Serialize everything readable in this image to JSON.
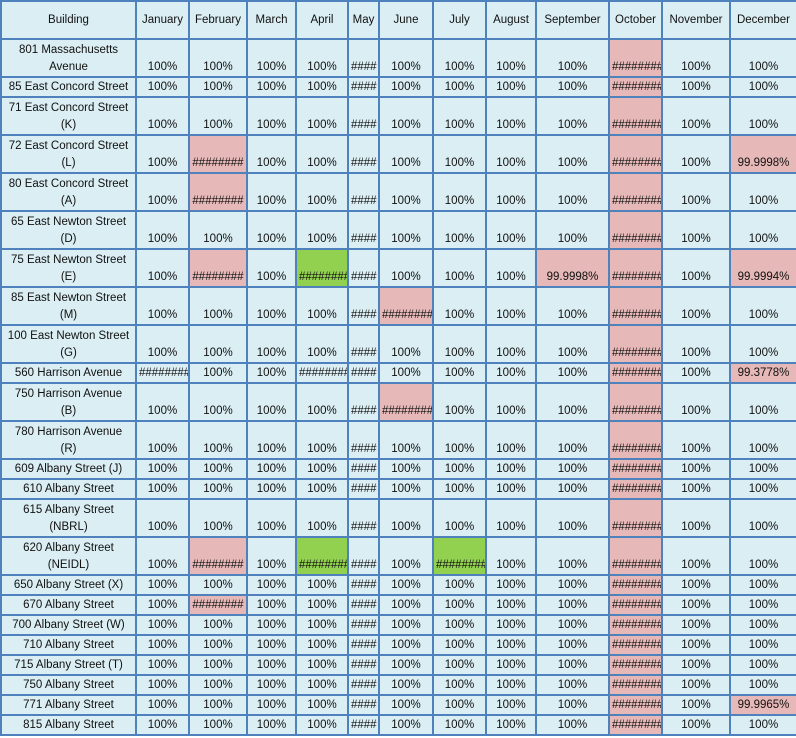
{
  "table": {
    "header": [
      "Building",
      "January",
      "February",
      "March",
      "April",
      "May",
      "June",
      "July",
      "August",
      "September",
      "October",
      "November",
      "December"
    ],
    "colors": {
      "pink": "#e6b8b7",
      "green": "#92d050"
    },
    "rows": [
      {
        "building": [
          "801 Massachusetts",
          "Avenue"
        ],
        "values": [
          "100%",
          "100%",
          "100%",
          "100%",
          "####",
          "100%",
          "100%",
          "100%",
          "100%",
          "########",
          "100%",
          "100%"
        ],
        "fills": [
          null,
          null,
          null,
          null,
          null,
          null,
          null,
          null,
          null,
          "pink",
          null,
          null
        ]
      },
      {
        "building": [
          "85 East Concord Street"
        ],
        "values": [
          "100%",
          "100%",
          "100%",
          "100%",
          "####",
          "100%",
          "100%",
          "100%",
          "100%",
          "########",
          "100%",
          "100%"
        ],
        "fills": [
          null,
          null,
          null,
          null,
          null,
          null,
          null,
          null,
          null,
          "pink",
          null,
          null
        ]
      },
      {
        "building": [
          "71 East Concord Street",
          "(K)"
        ],
        "values": [
          "100%",
          "100%",
          "100%",
          "100%",
          "####",
          "100%",
          "100%",
          "100%",
          "100%",
          "########",
          "100%",
          "100%"
        ],
        "fills": [
          null,
          null,
          null,
          null,
          null,
          null,
          null,
          null,
          null,
          "pink",
          null,
          null
        ]
      },
      {
        "building": [
          "72 East Concord Street",
          "(L)"
        ],
        "values": [
          "100%",
          "########",
          "100%",
          "100%",
          "####",
          "100%",
          "100%",
          "100%",
          "100%",
          "########",
          "100%",
          "99.9998%"
        ],
        "fills": [
          null,
          "pink",
          null,
          null,
          null,
          null,
          null,
          null,
          null,
          "pink",
          null,
          "pink"
        ]
      },
      {
        "building": [
          "80 East Concord Street",
          "(A)"
        ],
        "values": [
          "100%",
          "########",
          "100%",
          "100%",
          "####",
          "100%",
          "100%",
          "100%",
          "100%",
          "########",
          "100%",
          "100%"
        ],
        "fills": [
          null,
          "pink",
          null,
          null,
          null,
          null,
          null,
          null,
          null,
          "pink",
          null,
          null
        ]
      },
      {
        "building": [
          "65 East Newton Street",
          "(D)"
        ],
        "values": [
          "100%",
          "100%",
          "100%",
          "100%",
          "####",
          "100%",
          "100%",
          "100%",
          "100%",
          "########",
          "100%",
          "100%"
        ],
        "fills": [
          null,
          null,
          null,
          null,
          null,
          null,
          null,
          null,
          null,
          "pink",
          null,
          null
        ]
      },
      {
        "building": [
          "75 East Newton Street",
          "(E)"
        ],
        "values": [
          "100%",
          "########",
          "100%",
          "########",
          "####",
          "100%",
          "100%",
          "100%",
          "99.9998%",
          "########",
          "100%",
          "99.9994%"
        ],
        "fills": [
          null,
          "pink",
          null,
          "green",
          null,
          null,
          null,
          null,
          "pink",
          "pink",
          null,
          "pink"
        ]
      },
      {
        "building": [
          "85 East Newton Street",
          "(M)"
        ],
        "values": [
          "100%",
          "100%",
          "100%",
          "100%",
          "####",
          "########",
          "100%",
          "100%",
          "100%",
          "########",
          "100%",
          "100%"
        ],
        "fills": [
          null,
          null,
          null,
          null,
          null,
          "pink",
          null,
          null,
          null,
          "pink",
          null,
          null
        ]
      },
      {
        "building": [
          "100 East Newton Street",
          "(G)"
        ],
        "values": [
          "100%",
          "100%",
          "100%",
          "100%",
          "####",
          "100%",
          "100%",
          "100%",
          "100%",
          "########",
          "100%",
          "100%"
        ],
        "fills": [
          null,
          null,
          null,
          null,
          null,
          null,
          null,
          null,
          null,
          "pink",
          null,
          null
        ]
      },
      {
        "building": [
          "560 Harrison Avenue"
        ],
        "values": [
          "########",
          "100%",
          "100%",
          "########",
          "####",
          "100%",
          "100%",
          "100%",
          "100%",
          "########",
          "100%",
          "99.3778%"
        ],
        "fills": [
          null,
          null,
          null,
          null,
          null,
          null,
          null,
          null,
          null,
          "pink",
          null,
          "pink"
        ]
      },
      {
        "building": [
          "750 Harrison Avenue",
          "(B)"
        ],
        "values": [
          "100%",
          "100%",
          "100%",
          "100%",
          "####",
          "########",
          "100%",
          "100%",
          "100%",
          "########",
          "100%",
          "100%"
        ],
        "fills": [
          null,
          null,
          null,
          null,
          null,
          "pink",
          null,
          null,
          null,
          "pink",
          null,
          null
        ]
      },
      {
        "building": [
          "780 Harrison Avenue",
          "(R)"
        ],
        "values": [
          "100%",
          "100%",
          "100%",
          "100%",
          "####",
          "100%",
          "100%",
          "100%",
          "100%",
          "########",
          "100%",
          "100%"
        ],
        "fills": [
          null,
          null,
          null,
          null,
          null,
          null,
          null,
          null,
          null,
          "pink",
          null,
          null
        ]
      },
      {
        "building": [
          "609 Albany Street (J)"
        ],
        "values": [
          "100%",
          "100%",
          "100%",
          "100%",
          "####",
          "100%",
          "100%",
          "100%",
          "100%",
          "########",
          "100%",
          "100%"
        ],
        "fills": [
          null,
          null,
          null,
          null,
          null,
          null,
          null,
          null,
          null,
          "pink",
          null,
          null
        ]
      },
      {
        "building": [
          "610 Albany Street"
        ],
        "values": [
          "100%",
          "100%",
          "100%",
          "100%",
          "####",
          "100%",
          "100%",
          "100%",
          "100%",
          "########",
          "100%",
          "100%"
        ],
        "fills": [
          null,
          null,
          null,
          null,
          null,
          null,
          null,
          null,
          null,
          "pink",
          null,
          null
        ]
      },
      {
        "building": [
          "615 Albany Street",
          "(NBRL)"
        ],
        "values": [
          "100%",
          "100%",
          "100%",
          "100%",
          "####",
          "100%",
          "100%",
          "100%",
          "100%",
          "########",
          "100%",
          "100%"
        ],
        "fills": [
          null,
          null,
          null,
          null,
          null,
          null,
          null,
          null,
          null,
          "pink",
          null,
          null
        ]
      },
      {
        "building": [
          "620 Albany Street",
          "(NEIDL)"
        ],
        "values": [
          "100%",
          "########",
          "100%",
          "########",
          "####",
          "100%",
          "########",
          "100%",
          "100%",
          "########",
          "100%",
          "100%"
        ],
        "fills": [
          null,
          "pink",
          null,
          "green",
          null,
          null,
          "green",
          null,
          null,
          "pink",
          null,
          null
        ]
      },
      {
        "building": [
          "650 Albany Street (X)"
        ],
        "values": [
          "100%",
          "100%",
          "100%",
          "100%",
          "####",
          "100%",
          "100%",
          "100%",
          "100%",
          "########",
          "100%",
          "100%"
        ],
        "fills": [
          null,
          null,
          null,
          null,
          null,
          null,
          null,
          null,
          null,
          "pink",
          null,
          null
        ]
      },
      {
        "building": [
          "670 Albany Street"
        ],
        "values": [
          "100%",
          "########",
          "100%",
          "100%",
          "####",
          "100%",
          "100%",
          "100%",
          "100%",
          "########",
          "100%",
          "100%"
        ],
        "fills": [
          null,
          "pink",
          null,
          null,
          null,
          null,
          null,
          null,
          null,
          "pink",
          null,
          null
        ]
      },
      {
        "building": [
          "700 Albany Street (W)"
        ],
        "values": [
          "100%",
          "100%",
          "100%",
          "100%",
          "####",
          "100%",
          "100%",
          "100%",
          "100%",
          "########",
          "100%",
          "100%"
        ],
        "fills": [
          null,
          null,
          null,
          null,
          null,
          null,
          null,
          null,
          null,
          "pink",
          null,
          null
        ]
      },
      {
        "building": [
          "710 Albany Street"
        ],
        "values": [
          "100%",
          "100%",
          "100%",
          "100%",
          "####",
          "100%",
          "100%",
          "100%",
          "100%",
          "########",
          "100%",
          "100%"
        ],
        "fills": [
          null,
          null,
          null,
          null,
          null,
          null,
          null,
          null,
          null,
          "pink",
          null,
          null
        ]
      },
      {
        "building": [
          "715 Albany Street (T)"
        ],
        "values": [
          "100%",
          "100%",
          "100%",
          "100%",
          "####",
          "100%",
          "100%",
          "100%",
          "100%",
          "########",
          "100%",
          "100%"
        ],
        "fills": [
          null,
          null,
          null,
          null,
          null,
          null,
          null,
          null,
          null,
          "pink",
          null,
          null
        ]
      },
      {
        "building": [
          "750 Albany Street"
        ],
        "values": [
          "100%",
          "100%",
          "100%",
          "100%",
          "####",
          "100%",
          "100%",
          "100%",
          "100%",
          "########",
          "100%",
          "100%"
        ],
        "fills": [
          null,
          null,
          null,
          null,
          null,
          null,
          null,
          null,
          null,
          "pink",
          null,
          null
        ]
      },
      {
        "building": [
          "771 Albany Street"
        ],
        "values": [
          "100%",
          "100%",
          "100%",
          "100%",
          "####",
          "100%",
          "100%",
          "100%",
          "100%",
          "########",
          "100%",
          "99.9965%"
        ],
        "fills": [
          null,
          null,
          null,
          null,
          null,
          null,
          null,
          null,
          null,
          "pink",
          null,
          "pink"
        ]
      },
      {
        "building": [
          "815 Albany Street"
        ],
        "values": [
          "100%",
          "100%",
          "100%",
          "100%",
          "####",
          "100%",
          "100%",
          "100%",
          "100%",
          "########",
          "100%",
          "100%"
        ],
        "fills": [
          null,
          null,
          null,
          null,
          null,
          null,
          null,
          null,
          null,
          "pink",
          null,
          null
        ]
      }
    ]
  }
}
